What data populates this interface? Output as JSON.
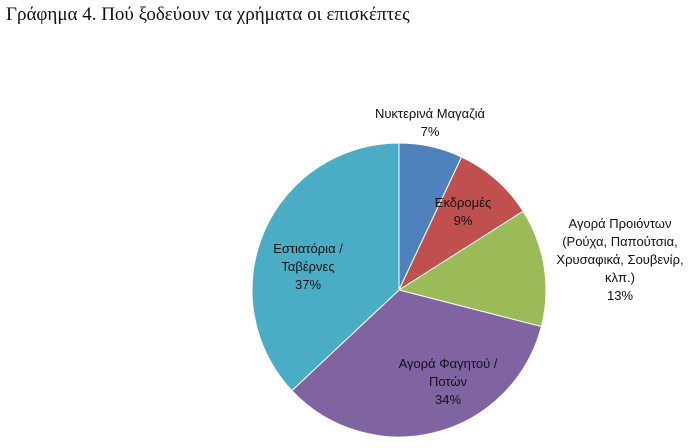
{
  "chart_data": {
    "type": "pie",
    "title": "Γράφημα 4. Πού ξοδεύουν τα χρήματα οι επισκέπτες",
    "slices": [
      {
        "label_lines": [
          "Νυκτερινά Μαγαζιά"
        ],
        "percent_label": "7%",
        "value": 7,
        "color": "#4f81bd"
      },
      {
        "label_lines": [
          "Εκδρομές"
        ],
        "percent_label": "9%",
        "value": 9,
        "color": "#c0504d"
      },
      {
        "label_lines": [
          "Αγορά Προιόντων",
          "(Ρούχα, Παπούτσια,",
          "Χρυσαφικά, Σουβενίρ,",
          "κλπ.)"
        ],
        "percent_label": "13%",
        "value": 13,
        "color": "#9bbb59"
      },
      {
        "label_lines": [
          "Αγορά Φαγητού /",
          "Ποτών"
        ],
        "percent_label": "34%",
        "value": 34,
        "color": "#8064a2"
      },
      {
        "label_lines": [
          "Εστιατόρια /",
          "Ταβέρνες"
        ],
        "percent_label": "37%",
        "value": 37,
        "color": "#4bacc6"
      }
    ],
    "legend": "none",
    "start_angle": "12 o'clock",
    "direction": "clockwise"
  }
}
